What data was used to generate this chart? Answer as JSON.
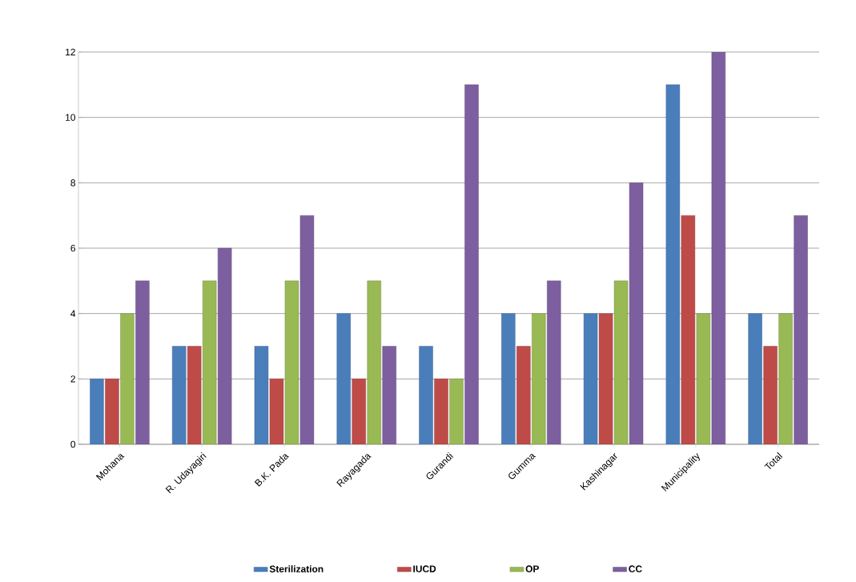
{
  "chart_data": {
    "type": "bar",
    "categories": [
      "Mohana",
      "R. Udayagiri",
      "B.K. Pada",
      "Rayagada",
      "Gurandi",
      "Gumma",
      "Kashinagar",
      "Municipality",
      "Total"
    ],
    "series": [
      {
        "name": "Sterilization",
        "color": "#4a7ebb",
        "values": [
          2,
          3,
          3,
          4,
          3,
          4,
          4,
          11,
          4
        ]
      },
      {
        "name": "IUCD",
        "color": "#be4b48",
        "values": [
          2,
          3,
          2,
          2,
          2,
          3,
          4,
          7,
          3
        ]
      },
      {
        "name": "OP",
        "color": "#98b954",
        "values": [
          4,
          5,
          5,
          5,
          2,
          4,
          5,
          4,
          4
        ]
      },
      {
        "name": "CC",
        "color": "#7d5fa0",
        "values": [
          5,
          6,
          7,
          3,
          11,
          5,
          8,
          12,
          7
        ]
      }
    ],
    "ylim": [
      0,
      12
    ],
    "yticks": [
      0,
      2,
      4,
      6,
      8,
      10,
      12
    ],
    "grid": "y",
    "legend": "bottom"
  }
}
